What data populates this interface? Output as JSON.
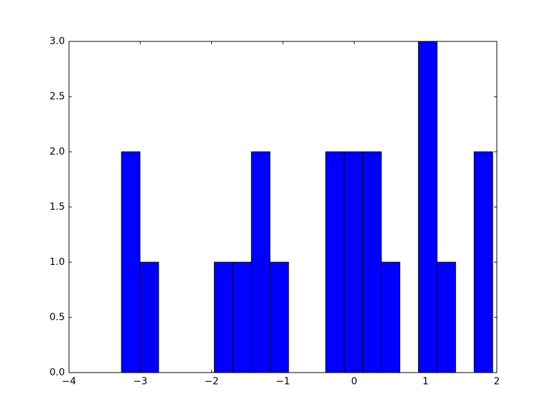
{
  "chart_data": {
    "type": "histogram",
    "bins": [
      -3.264,
      -3.004,
      -2.743,
      -2.483,
      -2.223,
      -1.962,
      -1.702,
      -1.442,
      -1.181,
      -0.921,
      -0.661,
      -0.4,
      -0.14,
      0.12,
      0.381,
      0.641,
      0.901,
      1.162,
      1.422,
      1.682,
      1.942
    ],
    "values": [
      2,
      1,
      0,
      0,
      0,
      1,
      1,
      2,
      1,
      0,
      0,
      2,
      2,
      2,
      1,
      0,
      3,
      1,
      0,
      2
    ],
    "color": "#0000ff",
    "xlim": [
      -4,
      2
    ],
    "xticks": [
      {
        "value": -4,
        "label": "−4"
      },
      {
        "value": -3,
        "label": "−3"
      },
      {
        "value": -2,
        "label": "−2"
      },
      {
        "value": -1,
        "label": "−1"
      },
      0,
      1,
      2
    ],
    "ylim": [
      0,
      3
    ],
    "yticks": [
      {
        "value": 0,
        "label": "0.0"
      },
      {
        "value": 0.5,
        "label": "0.5"
      },
      {
        "value": 1,
        "label": "1.0"
      },
      {
        "value": 1.5,
        "label": "1.5"
      },
      {
        "value": 2,
        "label": "2.0"
      },
      {
        "value": 2.5,
        "label": "2.5"
      },
      {
        "value": 3,
        "label": "3.0"
      }
    ],
    "grid": false
  }
}
